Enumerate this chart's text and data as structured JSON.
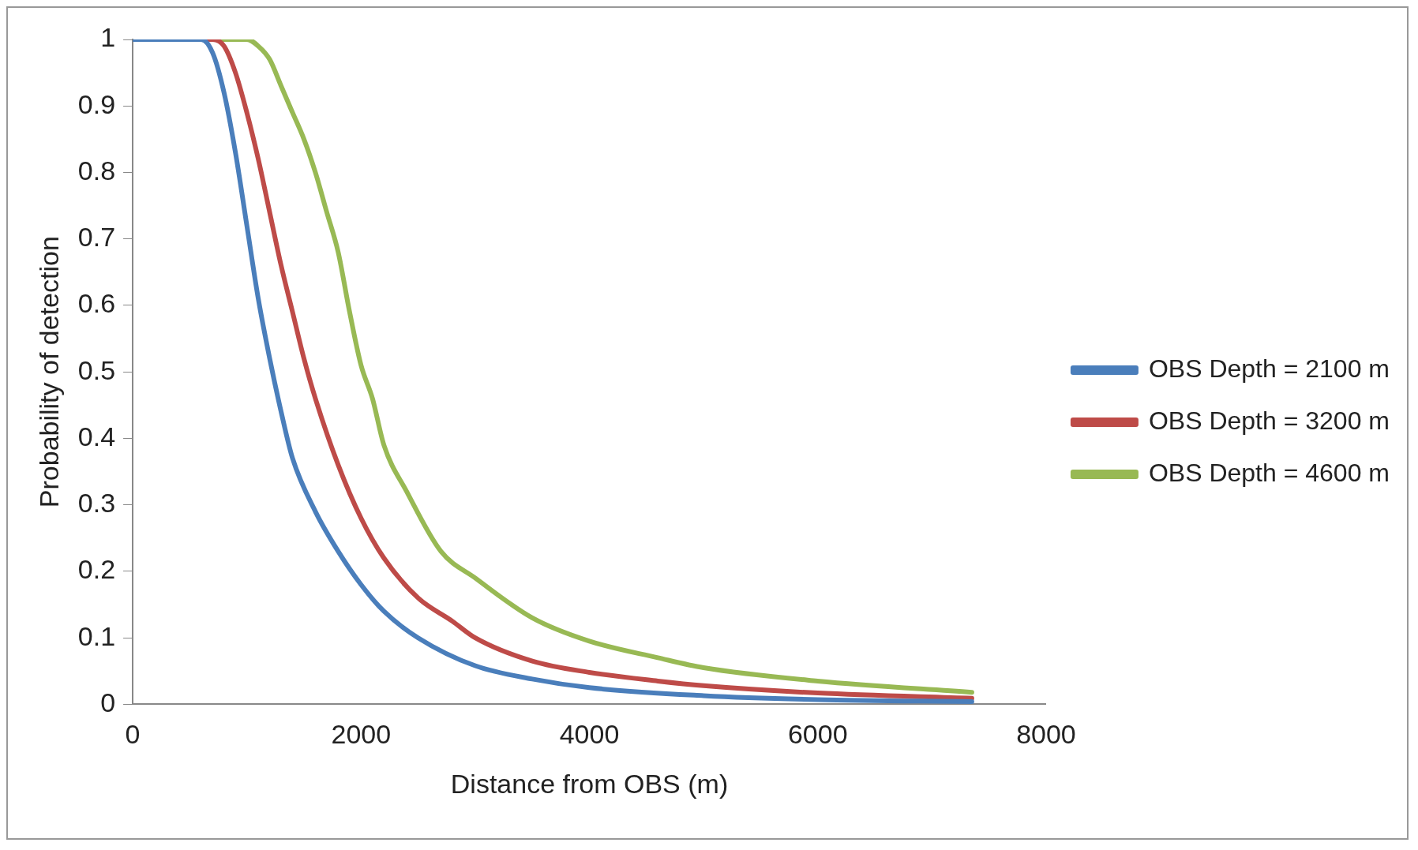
{
  "chart_data": {
    "type": "line",
    "xlabel": "Distance from OBS (m)",
    "ylabel": "Probability of detection",
    "xlim": [
      0,
      8000
    ],
    "xticks": [
      0,
      2000,
      4000,
      6000,
      8000
    ],
    "ylim": [
      0,
      1
    ],
    "yticks": [
      0,
      0.1,
      0.2,
      0.3,
      0.4,
      0.5,
      0.6,
      0.7,
      0.8,
      0.9,
      1
    ],
    "grid": false,
    "legend": "right",
    "marker": "none",
    "line_style": "solid",
    "series": [
      {
        "name": "OBS Depth = 2100 m",
        "color": "#4a7ebb",
        "x": [
          0,
          500,
          600,
          700,
          800,
          900,
          1000,
          1100,
          1200,
          1300,
          1400,
          1600,
          1800,
          2000,
          2200,
          2500,
          3000,
          3500,
          4000,
          5000,
          6000,
          7350
        ],
        "values": [
          1,
          1,
          1,
          0.98,
          0.92,
          0.83,
          0.72,
          0.61,
          0.52,
          0.44,
          0.37,
          0.29,
          0.23,
          0.18,
          0.14,
          0.1,
          0.058,
          0.038,
          0.025,
          0.013,
          0.007,
          0.004
        ]
      },
      {
        "name": "OBS Depth = 3200 m",
        "color": "#be4b48",
        "x": [
          0,
          700,
          800,
          900,
          1000,
          1100,
          1200,
          1300,
          1400,
          1500,
          1600,
          1800,
          2000,
          2200,
          2500,
          2800,
          3000,
          3500,
          4000,
          4600,
          5000,
          6000,
          7350
        ],
        "values": [
          1,
          1,
          0.99,
          0.95,
          0.89,
          0.82,
          0.74,
          0.66,
          0.59,
          0.52,
          0.46,
          0.36,
          0.28,
          0.22,
          0.16,
          0.125,
          0.1,
          0.065,
          0.048,
          0.035,
          0.028,
          0.017,
          0.009
        ]
      },
      {
        "name": "OBS Depth = 4600 m",
        "color": "#98b954",
        "x": [
          0,
          1000,
          1100,
          1200,
          1300,
          1400,
          1500,
          1600,
          1700,
          1800,
          1900,
          2000,
          2100,
          2200,
          2400,
          2700,
          3000,
          3500,
          4000,
          4600,
          5000,
          6000,
          7350
        ],
        "values": [
          1,
          1,
          0.99,
          0.97,
          0.93,
          0.89,
          0.85,
          0.8,
          0.74,
          0.68,
          0.59,
          0.51,
          0.46,
          0.39,
          0.32,
          0.23,
          0.19,
          0.13,
          0.095,
          0.07,
          0.055,
          0.035,
          0.018
        ]
      }
    ]
  }
}
